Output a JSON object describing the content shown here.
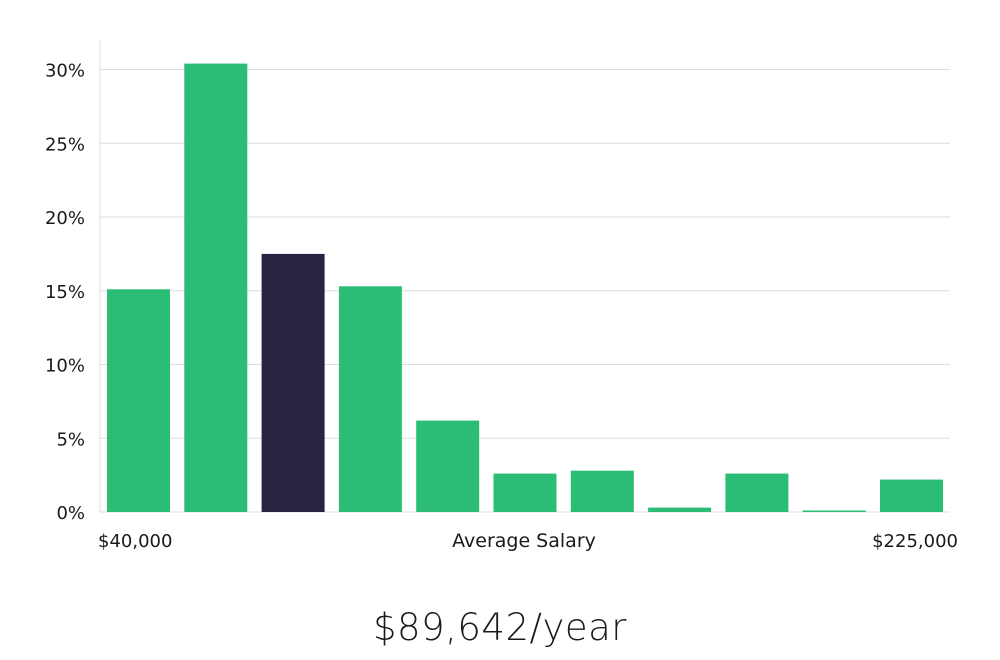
{
  "chart_data": {
    "type": "bar",
    "title": "",
    "xlabel": "Average Salary",
    "ylabel": "",
    "x_range_labels": {
      "min": "$40,000",
      "max": "$225,000"
    },
    "yticks": [
      "0%",
      "5%",
      "10%",
      "15%",
      "20%",
      "25%",
      "30%"
    ],
    "ylim": [
      0,
      30
    ],
    "grid": true,
    "values": [
      15.1,
      30.4,
      17.5,
      15.3,
      6.2,
      2.6,
      2.8,
      0.3,
      2.6,
      0.1,
      2.2
    ],
    "highlight_index": 2,
    "colors": {
      "bar": "#2bbd75",
      "highlight": "#272442",
      "grid": "#dcdcdc"
    }
  },
  "summary": {
    "salary": "$89,642/year"
  }
}
